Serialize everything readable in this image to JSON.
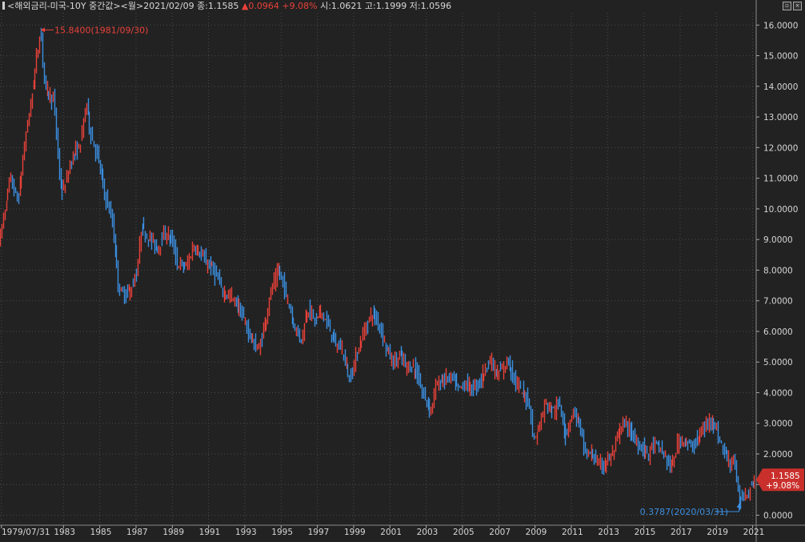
{
  "header": {
    "title": "<해외금리-미국-10Y 중간값>",
    "period": "<월>",
    "date": "2021/02/09",
    "close_label": "종:1.1585",
    "change": "▲0.0964",
    "change_pct": "+9.08%",
    "open_label": "시:1.0621",
    "high_label": "고:1.1999",
    "low_label": "저:1.0596"
  },
  "colors": {
    "up": "#e8413a",
    "down": "#3b8fe0",
    "background": "#222222",
    "grid": "#4a4a4a"
  },
  "chart_data": {
    "type": "line",
    "title": "",
    "xlabel": "",
    "ylabel": "",
    "ylim": [
      -0.3,
      16.4
    ],
    "x_range": [
      1979.5,
      2021.15
    ],
    "y_ticks": [
      "16.0000",
      "15.0000",
      "14.0000",
      "13.0000",
      "12.0000",
      "11.0000",
      "10.0000",
      "9.0000",
      "8.0000",
      "7.0000",
      "6.0000",
      "5.0000",
      "4.0000",
      "3.0000",
      "2.0000",
      "1.0000",
      "0.0000"
    ],
    "y_tick_values": [
      16,
      15,
      14,
      13,
      12,
      11,
      10,
      9,
      8,
      7,
      6,
      5,
      4,
      3,
      2,
      1,
      0
    ],
    "x_ticks": [
      "1979/07/31",
      "1983",
      "1985",
      "1987",
      "1989",
      "1991",
      "1993",
      "1995",
      "1997",
      "1999",
      "2001",
      "2003",
      "2005",
      "2007",
      "2009",
      "2011",
      "2013",
      "2015",
      "2017",
      "2019",
      "2021"
    ],
    "x_tick_values": [
      1979.58,
      1983,
      1985,
      1987,
      1989,
      1991,
      1993,
      1995,
      1997,
      1999,
      2001,
      2003,
      2005,
      2007,
      2009,
      2011,
      2013,
      2015,
      2017,
      2019,
      2021
    ],
    "series": [
      {
        "x": [
          1979.5,
          1980.1,
          1980.5,
          1981.0,
          1981.3,
          1981.75,
          1982.0,
          1982.5,
          1982.8,
          1983.0,
          1983.5,
          1983.9,
          1984.3,
          1984.5,
          1984.9,
          1985.3,
          1985.7,
          1986.1,
          1986.4,
          1986.8,
          1987.1,
          1987.3,
          1987.8,
          1988.2,
          1988.6,
          1989.0,
          1989.3,
          1989.8,
          1990.2,
          1990.5,
          1990.8,
          1991.3,
          1991.8,
          1992.1,
          1992.6,
          1993.0,
          1993.5,
          1993.8,
          1994.2,
          1994.5,
          1994.9,
          1995.3,
          1995.7,
          1996.1,
          1996.5,
          1996.9,
          1997.2,
          1997.6,
          1998.0,
          1998.4,
          1998.8,
          1999.2,
          1999.6,
          2000.0,
          2000.4,
          2000.8,
          2001.2,
          2001.6,
          2001.9,
          2002.4,
          2002.8,
          2003.3,
          2003.5,
          2003.9,
          2004.4,
          2004.8,
          2005.2,
          2005.6,
          2006.0,
          2006.5,
          2006.9,
          2007.2,
          2007.5,
          2007.9,
          2008.3,
          2008.7,
          2008.95,
          2009.3,
          2009.6,
          2010.0,
          2010.4,
          2010.7,
          2011.1,
          2011.4,
          2011.8,
          2012.2,
          2012.55,
          2012.9,
          2013.3,
          2013.7,
          2014.0,
          2014.5,
          2014.9,
          2015.3,
          2015.5,
          2015.9,
          2016.3,
          2016.55,
          2016.9,
          2017.2,
          2017.6,
          2017.9,
          2018.3,
          2018.8,
          2019.1,
          2019.5,
          2019.8,
          2020.0,
          2020.25,
          2020.5,
          2020.8,
          2021.1
        ],
        "values": [
          9.0,
          11.0,
          10.2,
          12.6,
          13.8,
          15.84,
          14.0,
          13.5,
          11.0,
          10.5,
          11.7,
          12.0,
          13.5,
          12.5,
          11.7,
          10.5,
          9.6,
          7.3,
          7.2,
          7.4,
          8.0,
          9.4,
          9.0,
          8.7,
          9.2,
          9.0,
          8.2,
          8.1,
          8.8,
          8.6,
          8.3,
          8.0,
          7.3,
          7.2,
          6.9,
          6.3,
          5.6,
          5.4,
          6.5,
          7.4,
          8.0,
          7.2,
          6.3,
          5.7,
          6.8,
          6.3,
          6.7,
          6.2,
          5.6,
          5.4,
          4.4,
          5.3,
          6.0,
          6.6,
          6.3,
          5.5,
          5.0,
          5.2,
          4.9,
          4.8,
          4.0,
          3.4,
          4.2,
          4.4,
          4.5,
          4.1,
          4.3,
          4.1,
          4.4,
          5.1,
          4.6,
          4.7,
          5.1,
          4.4,
          4.0,
          3.7,
          2.4,
          3.0,
          3.7,
          3.4,
          3.6,
          2.6,
          3.4,
          3.1,
          2.0,
          2.0,
          1.6,
          1.7,
          2.0,
          2.8,
          3.0,
          2.5,
          2.2,
          2.0,
          2.3,
          2.2,
          1.8,
          1.5,
          2.4,
          2.5,
          2.2,
          2.4,
          2.8,
          3.2,
          2.6,
          2.0,
          1.7,
          1.9,
          0.3787,
          0.65,
          0.8,
          1.1585
        ]
      }
    ],
    "annotations": [
      {
        "label": "15.8400(1981/09/30)",
        "x": 1981.75,
        "y": 15.84,
        "color": "#e8413a"
      },
      {
        "label": "0.3787(2020/03/31)",
        "x": 2020.25,
        "y": 0.3787,
        "color": "#3b8fe0"
      }
    ],
    "last_value_badge": {
      "value": "1.1585",
      "pct": "+9.08%"
    }
  }
}
